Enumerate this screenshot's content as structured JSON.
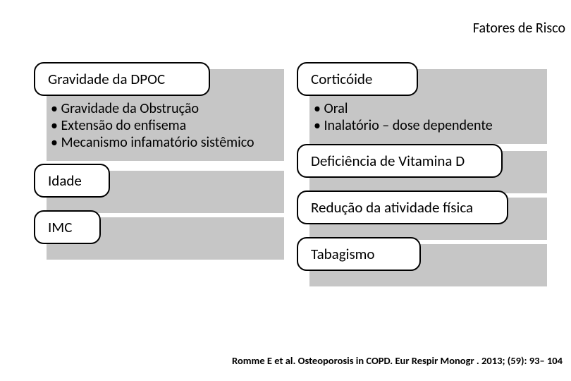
{
  "title": "Fatores de Risco",
  "background_color": "#ffffff",
  "shadow_color": "#c6c6c6",
  "text_color": "#000000",
  "border_color": "#000000",
  "font_family": "Calibri",
  "title_fontsize": 20,
  "pill_fontsize": 21,
  "bullet_fontsize": 20,
  "citation_fontsize": 14.5,
  "left": {
    "block1": {
      "header": "Gravidade da DPOC",
      "bullets": [
        "Gravidade da Obstrução",
        "Extensão do enfisema",
        "Mecanismo infamatório sistêmico"
      ]
    },
    "block2": "Idade",
    "block3": "IMC"
  },
  "right": {
    "block1": {
      "header": "Corticóide",
      "bullets": [
        "Oral",
        "Inalatório – dose dependente"
      ]
    },
    "block2": "Deficiência de Vitamina D",
    "block3": "Redução da atividade física",
    "block4": "Tabagismo"
  },
  "citation": "Romme E et al. Osteoporosis in COPD. Eur Respir Monogr . 2013; (59): 93– 104"
}
